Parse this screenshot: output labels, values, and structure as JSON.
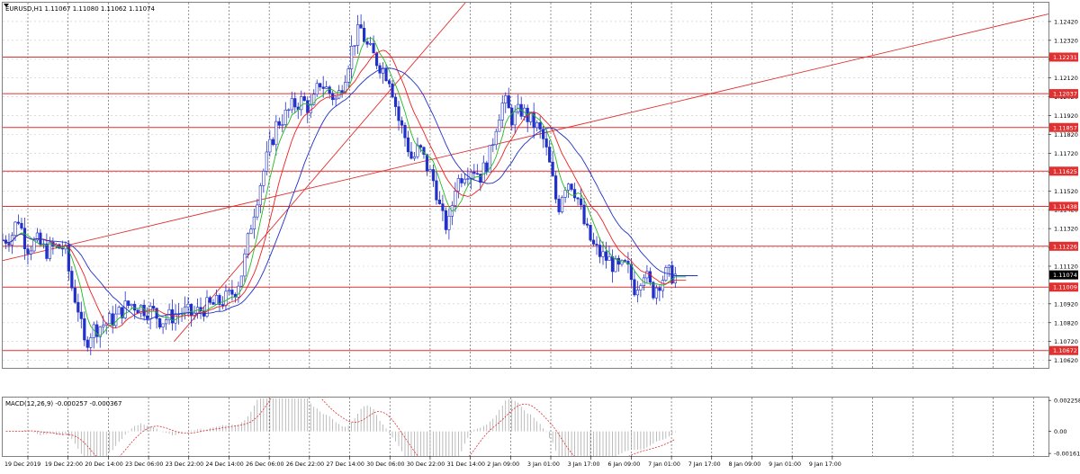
{
  "chart_data": {
    "type": "candlestick",
    "symbol_header": "EURUSD,H1  1.11067 1.11080 1.11062 1.11074",
    "price_axis": {
      "range": [
        1.1058,
        1.1252
      ],
      "ticks": [
        "1.12420",
        "1.12320",
        "1.12220",
        "1.12120",
        "1.12020",
        "1.11920",
        "1.11820",
        "1.11720",
        "1.11620",
        "1.11520",
        "1.11420",
        "1.11320",
        "1.11220",
        "1.11120",
        "1.10920",
        "1.10820",
        "1.10720",
        "1.10620"
      ]
    },
    "current_price": "1.11074",
    "horizontal_levels": [
      "1.12231",
      "1.12037",
      "1.11857",
      "1.11625",
      "1.11438",
      "1.11226",
      "1.11009",
      "1.10672"
    ],
    "trend_lines": [
      {
        "name": "",
        "from": [
          0,
          1.1115
        ],
        "to": [
          1.0,
          1.1246
        ]
      },
      {
        "name": "",
        "from": [
          0.2,
          1.1072
        ],
        "to": [
          0.54,
          1.1252
        ]
      }
    ],
    "time_labels": [
      "19 Dec 2019",
      "19 Dec 22:00",
      "20 Dec 14:00",
      "23 Dec 06:00",
      "23 Dec 22:00",
      "24 Dec 14:00",
      "26 Dec 06:00",
      "26 Dec 22:00",
      "27 Dec 14:00",
      "30 Dec 06:00",
      "30 Dec 22:00",
      "31 Dec 14:00",
      "2 Jan 09:00",
      "3 Jan 01:00",
      "3 Jan 17:00",
      "6 Jan 09:00",
      "7 Jan 01:00",
      "7 Jan 17:00",
      "8 Jan 09:00",
      "9 Jan 01:00",
      "9 Jan 17:00"
    ],
    "close_path": [
      [
        0.0,
        1.1126
      ],
      [
        0.01,
        1.1128
      ],
      [
        0.018,
        1.1138
      ],
      [
        0.028,
        1.1122
      ],
      [
        0.04,
        1.1125
      ],
      [
        0.05,
        1.112
      ],
      [
        0.06,
        1.1122
      ],
      [
        0.072,
        1.1122
      ],
      [
        0.08,
        1.1102
      ],
      [
        0.088,
        1.109
      ],
      [
        0.095,
        1.107
      ],
      [
        0.104,
        1.1078
      ],
      [
        0.112,
        1.108
      ],
      [
        0.122,
        1.1082
      ],
      [
        0.132,
        1.1085
      ],
      [
        0.142,
        1.109
      ],
      [
        0.15,
        1.1092
      ],
      [
        0.162,
        1.109
      ],
      [
        0.175,
        1.1088
      ],
      [
        0.185,
        1.1083
      ],
      [
        0.195,
        1.1085
      ],
      [
        0.21,
        1.1088
      ],
      [
        0.222,
        1.1086
      ],
      [
        0.235,
        1.109
      ],
      [
        0.25,
        1.1092
      ],
      [
        0.262,
        1.1095
      ],
      [
        0.272,
        1.11
      ],
      [
        0.28,
        1.111
      ],
      [
        0.29,
        1.1135
      ],
      [
        0.3,
        1.1155
      ],
      [
        0.31,
        1.1172
      ],
      [
        0.32,
        1.1188
      ],
      [
        0.33,
        1.1192
      ],
      [
        0.34,
        1.1198
      ],
      [
        0.35,
        1.12
      ],
      [
        0.36,
        1.1195
      ],
      [
        0.37,
        1.121
      ],
      [
        0.38,
        1.1205
      ],
      [
        0.39,
        1.12
      ],
      [
        0.4,
        1.1215
      ],
      [
        0.41,
        1.1232
      ],
      [
        0.418,
        1.1238
      ],
      [
        0.426,
        1.1228
      ],
      [
        0.435,
        1.1222
      ],
      [
        0.442,
        1.1218
      ],
      [
        0.452,
        1.1212
      ],
      [
        0.462,
        1.119
      ],
      [
        0.47,
        1.118
      ],
      [
        0.478,
        1.1168
      ],
      [
        0.486,
        1.1175
      ],
      [
        0.495,
        1.1165
      ],
      [
        0.505,
        1.1155
      ],
      [
        0.512,
        1.1138
      ],
      [
        0.52,
        1.1132
      ],
      [
        0.528,
        1.1155
      ],
      [
        0.538,
        1.1162
      ],
      [
        0.548,
        1.1165
      ],
      [
        0.558,
        1.116
      ],
      [
        0.568,
        1.117
      ],
      [
        0.578,
        1.1192
      ],
      [
        0.585,
        1.12
      ],
      [
        0.595,
        1.119
      ],
      [
        0.605,
        1.1195
      ],
      [
        0.615,
        1.119
      ],
      [
        0.625,
        1.1185
      ],
      [
        0.632,
        1.1178
      ],
      [
        0.64,
        1.1162
      ],
      [
        0.648,
        1.1142
      ],
      [
        0.655,
        1.1155
      ],
      [
        0.662,
        1.1158
      ],
      [
        0.67,
        1.115
      ],
      [
        0.68,
        1.1132
      ],
      [
        0.69,
        1.1122
      ],
      [
        0.698,
        1.1118
      ],
      [
        0.708,
        1.1115
      ],
      [
        0.718,
        1.111
      ],
      [
        0.728,
        1.1112
      ],
      [
        0.738,
        1.11
      ],
      [
        0.748,
        1.111
      ],
      [
        0.758,
        1.1098
      ],
      [
        0.768,
        1.1105
      ],
      [
        0.775,
        1.1108
      ],
      [
        0.785,
        1.1107
      ]
    ],
    "macd": {
      "label": "MACD(12,26,9) -0.000257 -0.000367",
      "axis_ticks": [
        "0.002258",
        "0.00",
        "-0.00161"
      ],
      "range": [
        -0.0018,
        0.0024
      ]
    }
  }
}
